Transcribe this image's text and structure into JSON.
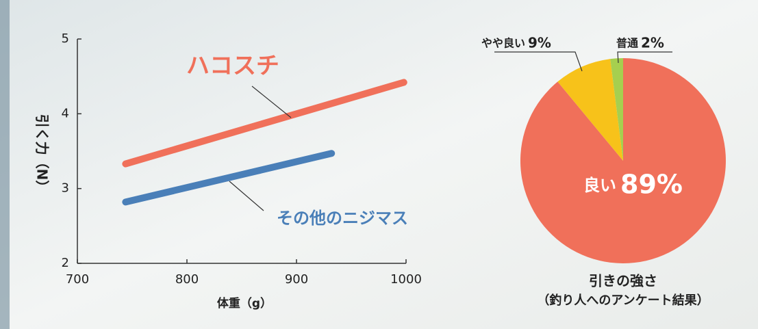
{
  "chart_data": [
    {
      "type": "line",
      "x_label": "体重（g）",
      "y_label": "引く力（N）",
      "xlim": [
        700,
        1000
      ],
      "xticks": [
        700,
        800,
        900,
        1000
      ],
      "ylim": [
        2,
        5
      ],
      "yticks": [
        2,
        3,
        4,
        5
      ],
      "series": [
        {
          "name": "ハコスチ",
          "color": "#f0705a",
          "x": [
            744,
            998
          ],
          "values": [
            3.33,
            4.42
          ]
        },
        {
          "name": "その他のニジマス",
          "color": "#4a7fb8",
          "x": [
            744,
            932
          ],
          "values": [
            2.82,
            3.47
          ]
        }
      ]
    },
    {
      "type": "pie",
      "title": "引きの強さ",
      "subtitle": "（釣り人へのアンケート結果）",
      "categories": [
        "良い",
        "やや良い",
        "普通"
      ],
      "values": [
        89,
        9,
        2
      ],
      "value_labels": [
        "89%",
        "9%",
        "2%"
      ],
      "colors": [
        "#f0705a",
        "#f7c21a",
        "#a6cf4f"
      ]
    }
  ]
}
